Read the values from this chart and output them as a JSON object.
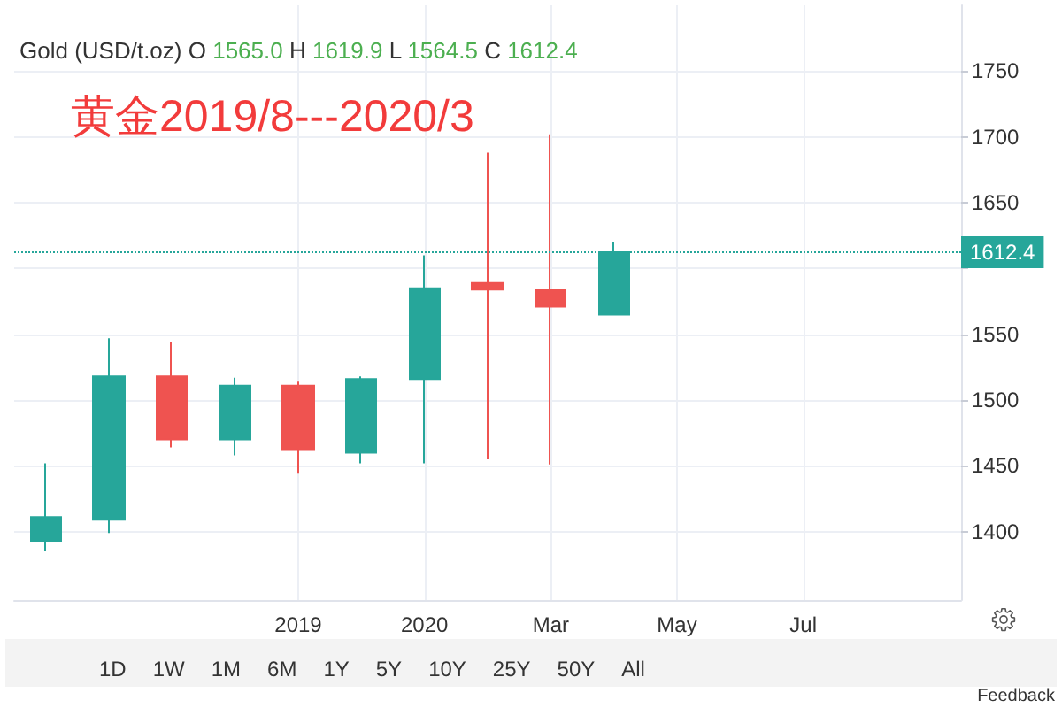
{
  "chart_data": {
    "type": "candlestick",
    "title": "Gold (USD/t.oz)",
    "subtitle": "黄金2019/8---2020/3",
    "categories": [
      null,
      null,
      null,
      null,
      "2019",
      null,
      "2020",
      null,
      "Mar",
      null,
      "May",
      null,
      "Jul",
      null,
      null
    ],
    "ohlc": [
      [
        1393,
        1452,
        1385,
        1411
      ],
      [
        1409,
        1547,
        1399,
        1518
      ],
      [
        1518,
        1544,
        1464,
        1470
      ],
      [
        1470,
        1517,
        1458,
        1511
      ],
      [
        1511,
        1514,
        1444,
        1462
      ],
      [
        1460,
        1518,
        1452,
        1516
      ],
      [
        1516,
        1610,
        1452,
        1585
      ],
      [
        1589,
        1688,
        1455,
        1584
      ],
      [
        1584,
        1702,
        1451,
        1571
      ],
      [
        1565.0,
        1619.9,
        1564.5,
        1612.4
      ],
      null,
      null,
      null,
      null,
      null
    ],
    "colors": [
      "#26a69a",
      "#26a69a",
      "#ef5350",
      "#26a69a",
      "#ef5350",
      "#26a69a",
      "#26a69a",
      "#ef5350",
      "#ef5350",
      "#26a69a",
      null,
      null,
      null,
      null,
      null
    ],
    "ylim": [
      1348,
      1800
    ],
    "yticks": [
      1400,
      1450,
      1500,
      1550,
      {
        "value": 1600,
        "label": null
      },
      1650,
      1700,
      1750
    ],
    "ref_lines": [
      {
        "axis": "y",
        "value": 1612.4,
        "label": "1612.4",
        "color": "#26a69a",
        "line_style": "dotted"
      }
    ],
    "grid": true,
    "annotations": [
      "O 1565.0 H 1619.9 L 1564.5 C 1612.4",
      "1D",
      "1W",
      "1M",
      "6M",
      "1Y",
      "5Y",
      "10Y",
      "25Y",
      "50Y",
      "All",
      "Feedback"
    ]
  }
}
